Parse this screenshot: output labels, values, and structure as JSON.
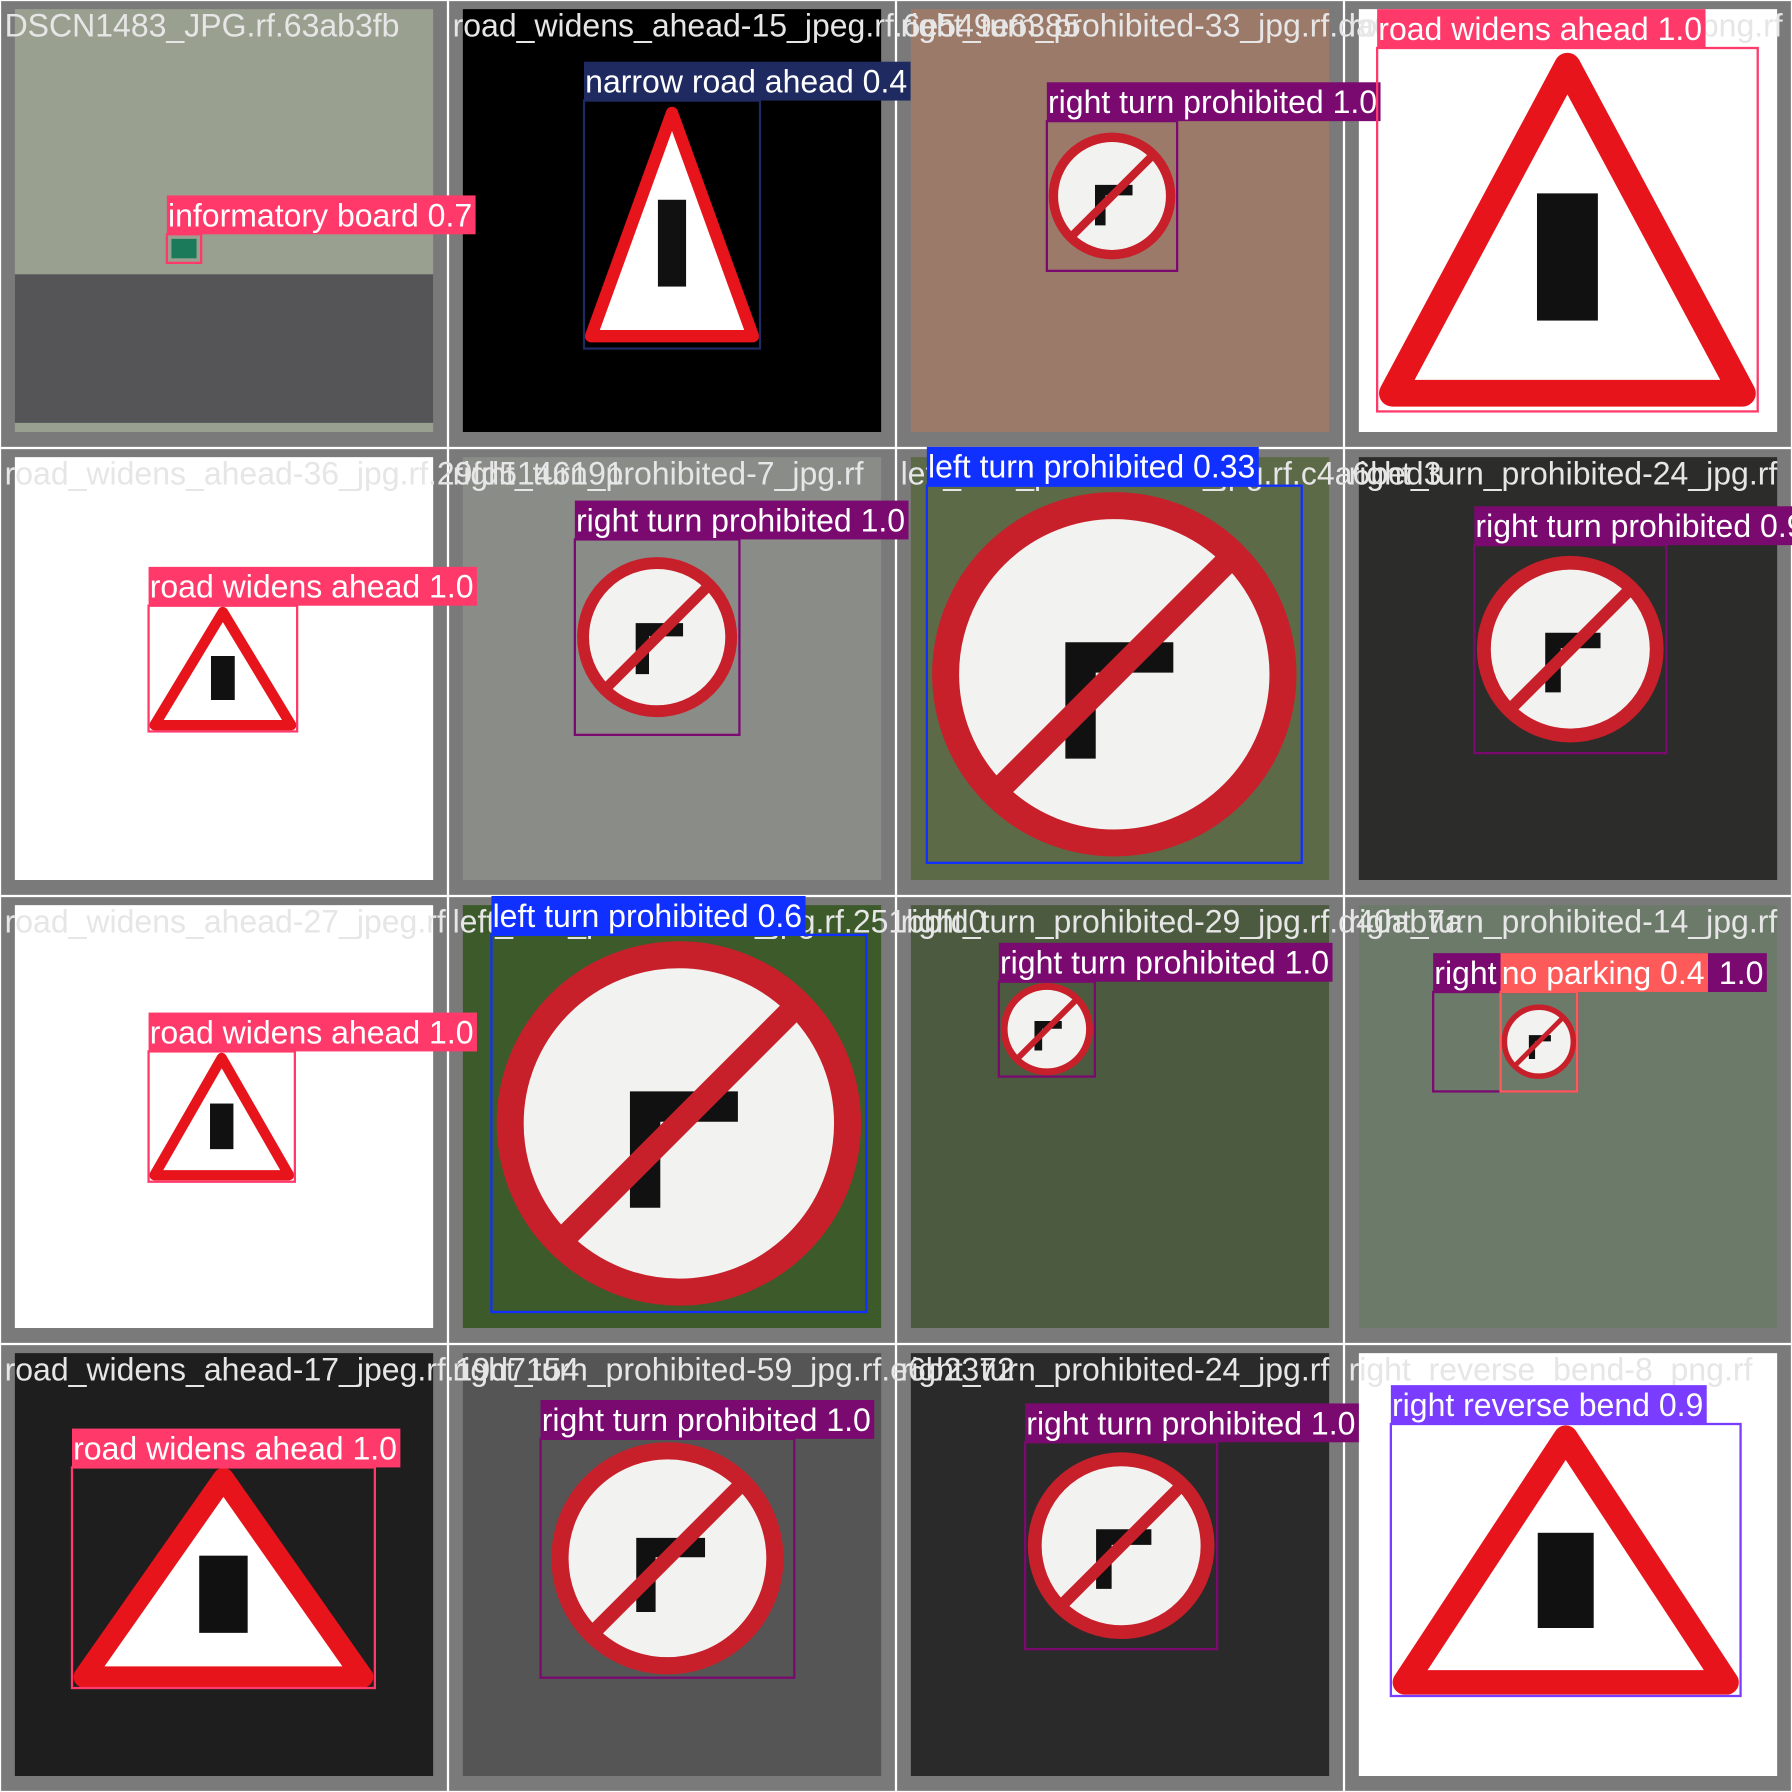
{
  "tiles": [
    {
      "filename": "DSCN1483_JPG.rf.63ab3fb",
      "detections": [
        {
          "label": "informatory board 0.7"
        }
      ]
    },
    {
      "filename": "road_widens_ahead-15_jpeg.rf.6e549e6385",
      "detections": [
        {
          "label": "narrow road ahead 0.4"
        }
      ]
    },
    {
      "filename": "right_turn_prohibited-33_jpg.rf.da6c005",
      "detections": [
        {
          "label": "right turn prohibited 1.0"
        }
      ]
    },
    {
      "filename": "road_widens_ahead-10_png.rf",
      "detections": [
        {
          "label": "road widens ahead 1.0"
        }
      ]
    },
    {
      "filename": "road_widens_ahead-36_jpg.rf.29fd5146191",
      "detections": [
        {
          "label": "road widens ahead 1.0"
        }
      ]
    },
    {
      "filename": "right_turn_prohibited-7_jpg.rf",
      "detections": [
        {
          "label": "right turn prohibited 1.0"
        }
      ]
    },
    {
      "filename": "left_turn_prohibited-3_jpg.rf.c4a6bed3",
      "detections": [
        {
          "label": "left turn prohibited 0.33"
        }
      ]
    },
    {
      "filename": "right_turn_prohibited-24_jpg.rf",
      "detections": [
        {
          "label": "right turn prohibited 0.9"
        }
      ]
    },
    {
      "filename": "road_widens_ahead-27_jpeg.rf",
      "detections": [
        {
          "label": "road widens ahead 1.0"
        }
      ]
    },
    {
      "filename": "left_turn_prohibited-9_jpg.rf.251bbfd0",
      "detections": [
        {
          "label": "left turn prohibited 0.6"
        }
      ]
    },
    {
      "filename": "right_turn_prohibited-29_jpg.rf.d40ab7a",
      "detections": [
        {
          "label": "right turn prohibited 1.0"
        }
      ]
    },
    {
      "filename": "right_turn_prohibited-14_jpg.rf",
      "detections": [
        {
          "label": "right turn prohibited 1.0"
        },
        {
          "label": "no parking 0.4"
        }
      ]
    },
    {
      "filename": "road_widens_ahead-17_jpeg.rf.19d7154",
      "detections": [
        {
          "label": "road widens ahead 1.0"
        }
      ]
    },
    {
      "filename": "right_turn_prohibited-59_jpg.rf.e6b2372",
      "detections": [
        {
          "label": "right turn prohibited 1.0"
        }
      ]
    },
    {
      "filename": "right_turn_prohibited-24_jpg.rf",
      "detections": [
        {
          "label": "right turn prohibited 1.0"
        }
      ]
    },
    {
      "filename": "right_reverse_bend-8_png.rf",
      "detections": [
        {
          "label": "right reverse bend 0.9"
        }
      ]
    }
  ]
}
